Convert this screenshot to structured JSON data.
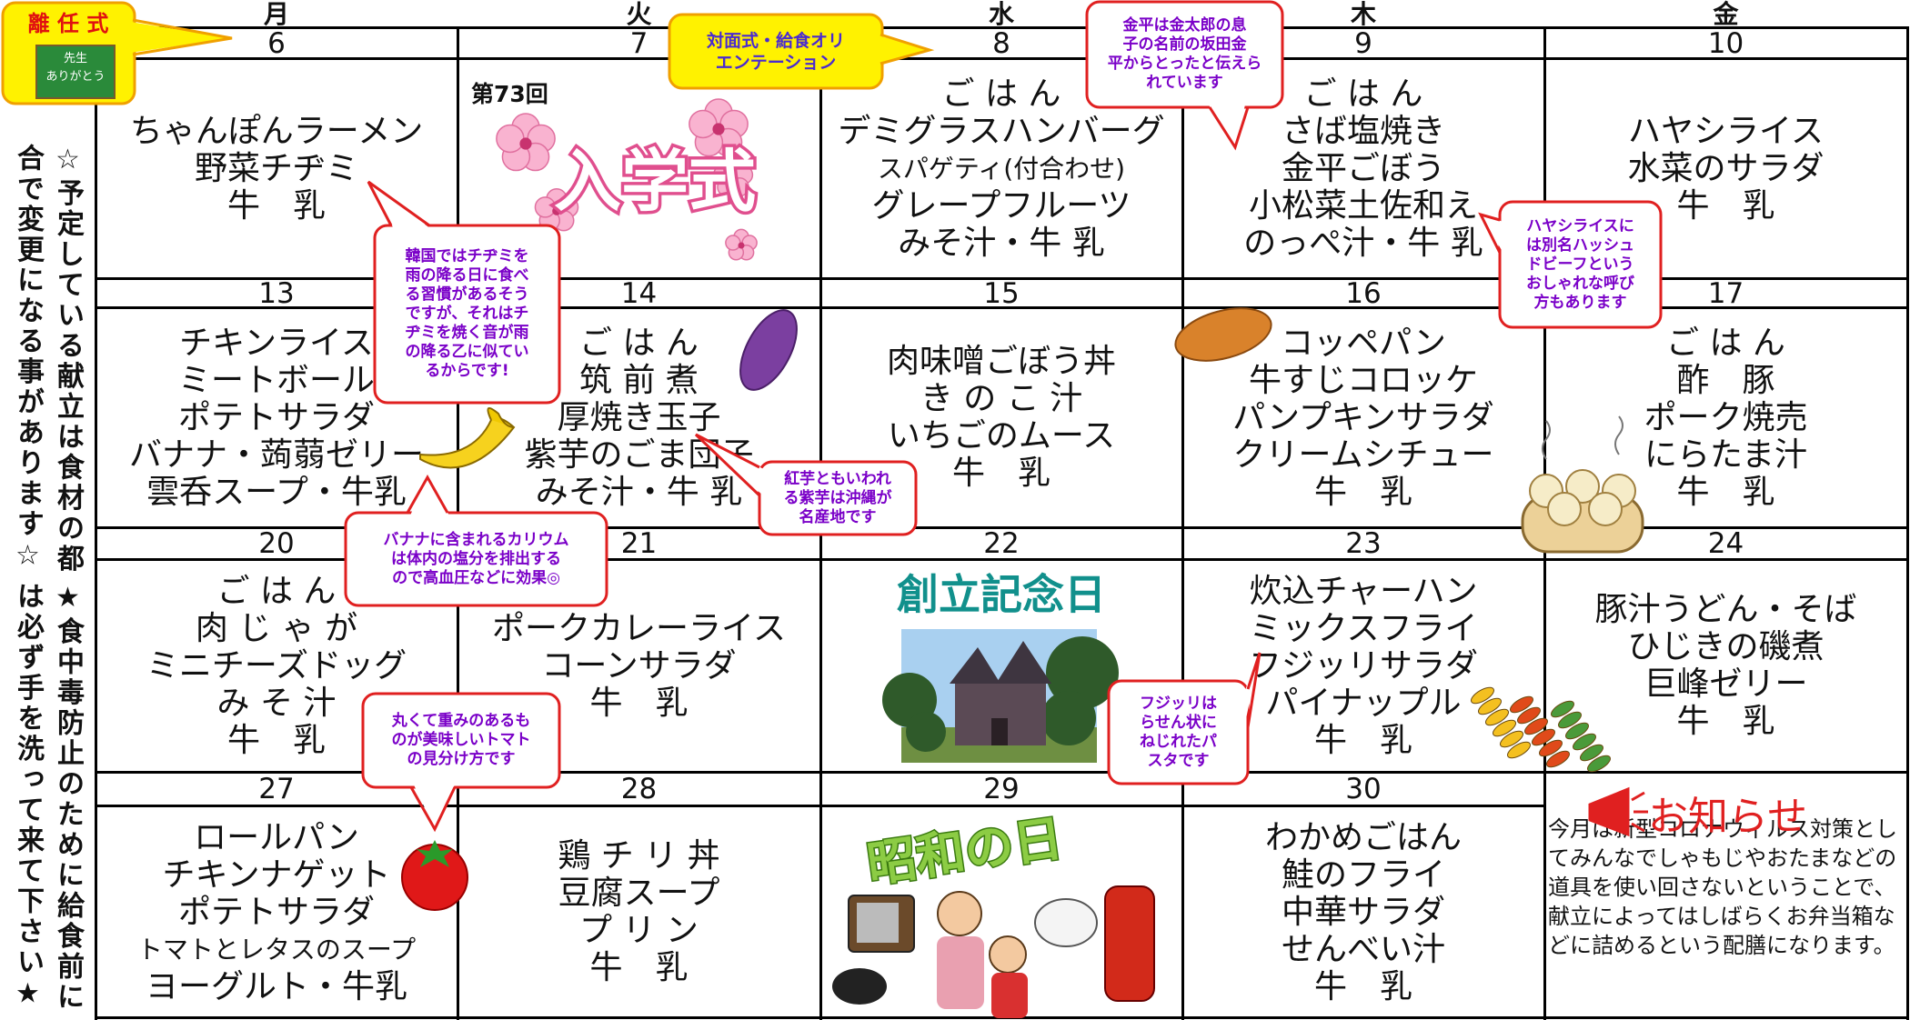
{
  "weekdays": [
    "月",
    "火",
    "水",
    "木",
    "金"
  ],
  "side_note": [
    "☆予定している献立は食材の都合で変更になる事があります☆",
    "★食中毒防止のために給食前には必ず手を洗って来て下さい★"
  ],
  "farewell": {
    "title": "離 任 式",
    "board": [
      "先生",
      "ありがとう"
    ]
  },
  "weeks": [
    {
      "days": [
        {
          "date": "6",
          "menu": [
            "ちゃんぽんラーメン",
            "野菜チヂミ",
            "牛　乳"
          ]
        },
        {
          "date": "7",
          "label": "第73回",
          "event": "入学式"
        },
        {
          "date": "8",
          "menu": [
            "ご は ん",
            "デミグラスハンバーグ",
            "スパゲティ(付合わせ)",
            "グレープフルーツ",
            "みそ汁・牛 乳"
          ]
        },
        {
          "date": "9",
          "menu": [
            "ご は ん",
            "さば塩焼き",
            "金平ごぼう",
            "小松菜土佐和え",
            "のっぺ汁・牛 乳"
          ]
        },
        {
          "date": "10",
          "menu": [
            "ハヤシライス",
            "水菜のサラダ",
            "牛　乳"
          ]
        }
      ]
    },
    {
      "days": [
        {
          "date": "13",
          "menu": [
            "チキンライス",
            "ミートボール",
            "ポテトサラダ",
            "バナナ・蒟蒻ゼリー",
            "雲呑スープ・牛乳"
          ]
        },
        {
          "date": "14",
          "menu": [
            "ご は ん",
            "筑 前 煮",
            "厚焼き玉子",
            "紫芋のごま団子",
            "みそ汁・牛 乳"
          ]
        },
        {
          "date": "15",
          "menu": [
            "肉味噌ごぼう丼",
            "き の こ 汁",
            "いちごのムース",
            "牛　乳"
          ]
        },
        {
          "date": "16",
          "menu": [
            "コッペパン",
            "牛すじコロッケ",
            "パンプキンサラダ",
            "クリームシチュー",
            "牛　乳"
          ]
        },
        {
          "date": "17",
          "menu": [
            "ご は ん",
            "酢　豚",
            "ポーク焼売",
            "にらたま汁",
            "牛　乳"
          ]
        }
      ]
    },
    {
      "days": [
        {
          "date": "20",
          "menu": [
            "ご は ん",
            "肉 じ ゃ が",
            "ミニチーズドッグ",
            "み そ 汁",
            "牛　乳"
          ]
        },
        {
          "date": "21",
          "menu": [
            "ポークカレーライス",
            "コーンサラダ",
            "牛　乳"
          ]
        },
        {
          "date": "22",
          "event": "創立記念日"
        },
        {
          "date": "23",
          "menu": [
            "炊込チャーハン",
            "ミックスフライ",
            "フジッリサラダ",
            "パイナップル",
            "牛　乳"
          ]
        },
        {
          "date": "24",
          "menu": [
            "豚汁うどん・そば",
            "ひじきの磯煮",
            "巨峰ゼリー",
            "牛　乳"
          ]
        }
      ]
    },
    {
      "days": [
        {
          "date": "27",
          "menu": [
            "ロールパン",
            "チキンナゲット",
            "ポテトサラダ",
            "トマトとレタスのスープ",
            "ヨーグルト・牛乳"
          ]
        },
        {
          "date": "28",
          "menu": [
            "鶏 チ リ 丼",
            "豆腐スープ",
            "プ リ ン",
            "牛　乳"
          ]
        },
        {
          "date": "29",
          "event": "昭和の日"
        },
        {
          "date": "30",
          "menu": [
            "わかめごはん",
            "鮭のフライ",
            "中華サラダ",
            "せんべい汁",
            "牛　乳"
          ]
        }
      ]
    }
  ],
  "notice": {
    "title": "お知らせ",
    "text": "今月は新型コロナウィルス対策としてみんなでしゃもじやおたまなどの道具を使い回さないということで、献立によってはしばらくお弁当箱などに詰めるという配膳になります。"
  },
  "callouts": [
    {
      "lines": [
        "対面式・給食オリ",
        "エンテーション"
      ]
    },
    {
      "lines": [
        "金平は金太郎の息",
        "子の名前の坂田金",
        "平からとったと伝えら",
        "れています"
      ]
    },
    {
      "lines": [
        "韓国ではチヂミを",
        "雨の降る日に食べ",
        "る習慣があるそう",
        "ですが、それはチ",
        "ヂミを焼く音が雨",
        "の降る乙に似てい",
        "るからです!"
      ]
    },
    {
      "lines": [
        "ハヤシライスに",
        "は別名ハッシュ",
        "ドビーフという",
        "おしゃれな呼び",
        "方もあります"
      ]
    },
    {
      "lines": [
        "紅芋ともいわれ",
        "る紫芋は沖縄が",
        "名産地です"
      ]
    },
    {
      "lines": [
        "バナナに含まれるカリウム",
        "は体内の塩分を排出する",
        "ので高血圧などに効果◎"
      ]
    },
    {
      "lines": [
        "丸くて重みのあるも",
        "のが美味しいトマト",
        "の見分け方です"
      ]
    },
    {
      "lines": [
        "フジッリは",
        "らせん状に",
        "ねじれたパ",
        "スタです"
      ]
    }
  ]
}
